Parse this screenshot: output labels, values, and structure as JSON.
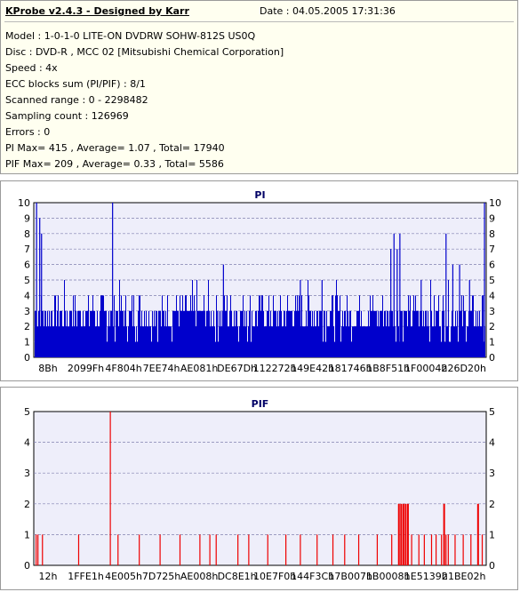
{
  "header": {
    "title": "KProbe v2.4.3 - Designed by Karr",
    "date": "Date : 04.05.2005 17:31:36"
  },
  "info_lines": [
    "Model : 1-0-1-0 LITE-ON DVDRW SOHW-812S  US0Q",
    "Disc : DVD-R , MCC 02 [Mitsubishi Chemical Corporation]",
    "Speed : 4x",
    "ECC blocks sum (PI/PIF) : 8/1",
    "Scanned range : 0 - 2298482",
    "Sampling count : 126969",
    "Errors : 0",
    "PI Max= 415 , Average= 1.07 , Total= 17940",
    "PIF Max= 209 , Average= 0.33 , Total= 5586"
  ],
  "colors": {
    "pi_bar": "#0000cc",
    "pif_bar": "#ee0000",
    "plot_bg": "#eeeefa",
    "grid": "#8080b0",
    "info_bg": "#fffff0"
  },
  "chart_data": [
    {
      "type": "bar",
      "title": "PI",
      "ylim": [
        0,
        10
      ],
      "yticks": [
        0,
        1,
        2,
        3,
        4,
        5,
        6,
        7,
        8,
        9,
        10
      ],
      "y_tick_labels_both_sides": true,
      "grid": true,
      "xtick_labels": [
        "8Bh",
        "2099Fh",
        "4F804h",
        "7EE74h",
        "AE081h",
        "DE67Dh",
        "112272h",
        "149E42h",
        "181746h",
        "1B8F51h",
        "1F0004h",
        "226D20h"
      ],
      "base_level": 2,
      "description_of_values": "Dense PI counts per sample, mostly 2-4, spikes to 10 near start and end",
      "spikes": [
        {
          "pos": 0.005,
          "value": 10
        },
        {
          "pos": 0.012,
          "value": 9
        },
        {
          "pos": 0.016,
          "value": 8
        },
        {
          "pos": 0.173,
          "value": 10
        },
        {
          "pos": 0.418,
          "value": 6
        },
        {
          "pos": 0.588,
          "value": 5
        },
        {
          "pos": 0.636,
          "value": 5
        },
        {
          "pos": 0.788,
          "value": 7
        },
        {
          "pos": 0.795,
          "value": 8
        },
        {
          "pos": 0.802,
          "value": 7
        },
        {
          "pos": 0.808,
          "value": 8
        },
        {
          "pos": 0.855,
          "value": 5
        },
        {
          "pos": 0.91,
          "value": 8
        },
        {
          "pos": 0.925,
          "value": 6
        },
        {
          "pos": 0.94,
          "value": 6
        },
        {
          "pos": 0.962,
          "value": 5
        },
        {
          "pos": 0.995,
          "value": 10
        }
      ]
    },
    {
      "type": "bar",
      "title": "PIF",
      "ylim": [
        0,
        5
      ],
      "yticks": [
        0,
        1,
        2,
        3,
        4,
        5
      ],
      "y_tick_labels_both_sides": true,
      "grid": true,
      "xtick_labels": [
        "12h",
        "1FFE1h",
        "4E005h",
        "7D725h",
        "AE008h",
        "DC8E1h",
        "10E7F0h",
        "144F3Ch",
        "17B007h",
        "1B0008h",
        "1E5139h",
        "21BE02h"
      ],
      "bars": [
        {
          "pos": 0.004,
          "value": 1
        },
        {
          "pos": 0.008,
          "value": 1
        },
        {
          "pos": 0.018,
          "value": 1
        },
        {
          "pos": 0.098,
          "value": 1
        },
        {
          "pos": 0.168,
          "value": 5
        },
        {
          "pos": 0.185,
          "value": 1
        },
        {
          "pos": 0.232,
          "value": 1
        },
        {
          "pos": 0.278,
          "value": 1
        },
        {
          "pos": 0.322,
          "value": 1
        },
        {
          "pos": 0.366,
          "value": 1
        },
        {
          "pos": 0.388,
          "value": 1
        },
        {
          "pos": 0.402,
          "value": 1
        },
        {
          "pos": 0.45,
          "value": 1
        },
        {
          "pos": 0.474,
          "value": 1
        },
        {
          "pos": 0.516,
          "value": 1
        },
        {
          "pos": 0.556,
          "value": 1
        },
        {
          "pos": 0.588,
          "value": 1
        },
        {
          "pos": 0.625,
          "value": 1
        },
        {
          "pos": 0.66,
          "value": 1
        },
        {
          "pos": 0.686,
          "value": 1
        },
        {
          "pos": 0.717,
          "value": 1
        },
        {
          "pos": 0.758,
          "value": 1
        },
        {
          "pos": 0.79,
          "value": 1
        },
        {
          "pos": 0.805,
          "value": 2
        },
        {
          "pos": 0.81,
          "value": 2
        },
        {
          "pos": 0.815,
          "value": 2
        },
        {
          "pos": 0.82,
          "value": 2
        },
        {
          "pos": 0.825,
          "value": 2
        },
        {
          "pos": 0.834,
          "value": 1
        },
        {
          "pos": 0.85,
          "value": 1
        },
        {
          "pos": 0.862,
          "value": 1
        },
        {
          "pos": 0.878,
          "value": 1
        },
        {
          "pos": 0.888,
          "value": 1
        },
        {
          "pos": 0.9,
          "value": 1
        },
        {
          "pos": 0.905,
          "value": 2
        },
        {
          "pos": 0.91,
          "value": 1
        },
        {
          "pos": 0.915,
          "value": 1
        },
        {
          "pos": 0.93,
          "value": 1
        },
        {
          "pos": 0.948,
          "value": 1
        },
        {
          "pos": 0.965,
          "value": 1
        },
        {
          "pos": 0.98,
          "value": 2
        },
        {
          "pos": 0.99,
          "value": 1
        }
      ]
    }
  ]
}
